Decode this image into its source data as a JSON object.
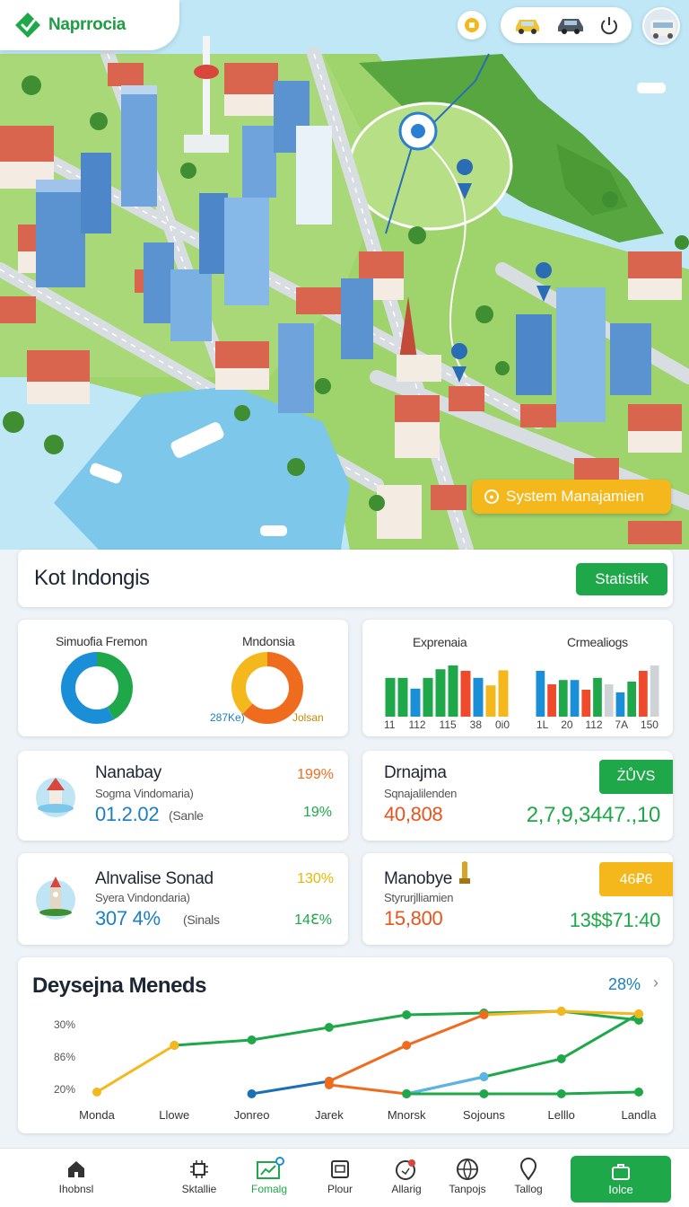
{
  "app": {
    "name": "Naprrocia"
  },
  "colors": {
    "green": "#1fa84a",
    "blue": "#1a7fc4",
    "orange": "#ef6c1f",
    "yellow": "#f5b81c"
  },
  "map": {
    "system_button": "System Manajamien"
  },
  "header": {
    "title": "Kot Indongis",
    "stat_button": "Statistik"
  },
  "donut_panel": {
    "left_label": "Simuofia Fremon",
    "right_label": "Mndonsia",
    "right_value_left": "287Ke)",
    "right_value_right": "Jolsan",
    "left_ring": [
      {
        "color": "#1fa84a",
        "fraction": 0.42
      },
      {
        "color": "#1a8fd8",
        "fraction": 0.58
      }
    ],
    "right_ring": [
      {
        "color": "#ef6c1f",
        "fraction": 0.62
      },
      {
        "color": "#f5b81c",
        "fraction": 0.38
      }
    ]
  },
  "bar_panel": {
    "left_label": "Exprenaia",
    "right_label": "Crmealiogs",
    "left_ticks": [
      "11",
      "112",
      "115",
      "38",
      "0i0"
    ],
    "right_ticks": [
      "1L",
      "20",
      "112",
      "7A",
      "150"
    ],
    "left_bars": [
      {
        "v": 0.72,
        "c": "#1fa84a"
      },
      {
        "v": 0.72,
        "c": "#1fa84a"
      },
      {
        "v": 0.52,
        "c": "#1a8fd8"
      },
      {
        "v": 0.72,
        "c": "#1fa84a"
      },
      {
        "v": 0.88,
        "c": "#1fa84a"
      },
      {
        "v": 0.95,
        "c": "#1fa84a"
      },
      {
        "v": 0.85,
        "c": "#ef4a2b"
      },
      {
        "v": 0.72,
        "c": "#1a8fd8"
      },
      {
        "v": 0.58,
        "c": "#f5b81c"
      },
      {
        "v": 0.86,
        "c": "#f5b81c"
      }
    ],
    "right_bars": [
      {
        "v": 0.85,
        "c": "#1a8fd8"
      },
      {
        "v": 0.6,
        "c": "#ef4a2b"
      },
      {
        "v": 0.68,
        "c": "#1fa84a"
      },
      {
        "v": 0.68,
        "c": "#1a8fd8"
      },
      {
        "v": 0.5,
        "c": "#ef4a2b"
      },
      {
        "v": 0.72,
        "c": "#1fa84a"
      },
      {
        "v": 0.6,
        "c": "#cfd3d6"
      },
      {
        "v": 0.45,
        "c": "#1a8fd8"
      },
      {
        "v": 0.65,
        "c": "#1fa84a"
      },
      {
        "v": 0.85,
        "c": "#ef4a2b"
      },
      {
        "v": 0.95,
        "c": "#cfd3d6"
      }
    ]
  },
  "kpis": [
    {
      "title": "Nanabay",
      "subtitle": "Sogma Vindomaria)",
      "value": "01.2.02",
      "value_note": "(Sanle",
      "pct_top": "199%",
      "pct_bottom": "19%"
    },
    {
      "title": "Drnajma",
      "subtitle": "Sqnajalilenden",
      "value": "40,808",
      "tag": "ŻŮVS",
      "value_right": "2,7,9,3447.,10"
    },
    {
      "title": "Alnvalise Sonad",
      "subtitle": "Syera Vindondaria)",
      "value": "307 4%",
      "value_note": "(Sinals",
      "pct_top": "130%",
      "pct_bottom": "14ℇ%"
    },
    {
      "title": "Manobye",
      "subtitle": "Styrurjlliamien",
      "value": "15,800",
      "tag": "46₽6",
      "value_right": "13$$71:40"
    }
  ],
  "line_chart": {
    "title": "Deysejna Meneds",
    "top_value": "28%",
    "y_ticks": [
      "30%",
      "86%",
      "20%"
    ],
    "x_ticks": [
      "Monda",
      "Llowe",
      "Jonreo",
      "Jarek",
      "Mnorsk",
      "Sojouns",
      "Lelllo",
      "Landla"
    ]
  },
  "chart_data": {
    "type": "line",
    "title": "Deysejna Meneds",
    "categories": [
      "Monda",
      "Llowe",
      "Jonreo",
      "Jarek",
      "Mnorsk",
      "Sojouns",
      "Lelllo",
      "Landla"
    ],
    "y_tick_labels": [
      "30%",
      "86%",
      "20%"
    ],
    "ylim": [
      0,
      100
    ],
    "series": [
      {
        "color": "#1fa84a",
        "values": [
          null,
          60,
          66,
          80,
          94,
          96,
          98,
          88
        ]
      },
      {
        "color": "#1fa84a",
        "values": [
          null,
          null,
          null,
          null,
          6,
          25,
          45,
          95
        ]
      },
      {
        "color": "#f5b81c",
        "values": [
          8,
          60,
          null,
          null,
          null,
          94,
          98,
          95
        ]
      },
      {
        "color": "#1a6fb8",
        "values": [
          null,
          null,
          6,
          20,
          null,
          null,
          null,
          null
        ]
      },
      {
        "color": "#ef6c1f",
        "values": [
          null,
          null,
          null,
          20,
          60,
          94,
          null,
          null
        ]
      },
      {
        "color": "#ef6c1f",
        "values": [
          null,
          null,
          null,
          16,
          6,
          null,
          null,
          null
        ]
      },
      {
        "color": "#5bb3e6",
        "values": [
          null,
          null,
          null,
          null,
          6,
          25,
          null,
          null
        ]
      },
      {
        "color": "#1fa84a",
        "values": [
          null,
          null,
          null,
          null,
          6,
          6,
          6,
          8
        ]
      }
    ]
  },
  "nav": {
    "items": [
      {
        "label": "Ihobnsl",
        "icon": "home-icon"
      },
      {
        "label": "Sktallie",
        "icon": "chip-icon"
      },
      {
        "label": "Fomalg",
        "icon": "chart-board-icon"
      },
      {
        "label": "Plour",
        "icon": "file-icon"
      },
      {
        "label": "Allarig",
        "icon": "alarm-icon"
      },
      {
        "label": "Tanpojs",
        "icon": "globe-icon"
      },
      {
        "label": "Tallog",
        "icon": "pin-icon"
      }
    ],
    "cta": {
      "label": "Iolce",
      "icon": "briefcase-icon"
    }
  }
}
